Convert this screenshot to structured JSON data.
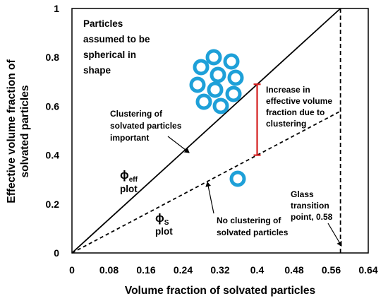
{
  "chart_data": {
    "type": "line",
    "xlabel": "Volume fraction of solvated particles",
    "ylabel": "Effective volume fraction of solvated particles",
    "xlim": [
      0,
      0.64
    ],
    "ylim": [
      0,
      1
    ],
    "x_ticks": [
      "0",
      "0.08",
      "0.16",
      "0.24",
      "0.32",
      "0.4",
      "0.48",
      "0.56",
      "0.64"
    ],
    "y_ticks": [
      "0",
      "0.2",
      "0.4",
      "0.6",
      "0.8",
      "1"
    ],
    "grid": false,
    "series": [
      {
        "key": "phi_eff",
        "style": "solid",
        "color": "#000000",
        "x": [
          0,
          0.58
        ],
        "y": [
          0,
          1
        ]
      },
      {
        "key": "phi_s",
        "style": "dashed",
        "color": "#000000",
        "x": [
          0,
          0.58
        ],
        "y": [
          0,
          0.58
        ]
      }
    ],
    "glass_transition": {
      "x": 0.58,
      "style": "dashed"
    },
    "clustering_gap": {
      "x": 0.4,
      "y_low": 0.4,
      "y_high": 0.69,
      "color": "#d42020"
    },
    "particle_color": "#1ea0d8",
    "annotations": {
      "particles_note": [
        "Particles",
        "assumed to be",
        "spherical in",
        "shape"
      ],
      "clustering_important": [
        "Clustering of",
        "solvated particles",
        "important"
      ],
      "increase": [
        "Increase in",
        "effective volume",
        "fraction due to",
        "clustering"
      ],
      "no_clustering": [
        "No clustering of",
        "solvated particles"
      ],
      "glass_point": [
        "Glass",
        "transition",
        "point, 0.58"
      ],
      "phi_eff_symbol": "ϕ",
      "phi_eff_sub": "eff",
      "phi_eff_plot": "plot",
      "phi_s_symbol": "ϕ",
      "phi_s_sub": "S",
      "phi_s_plot": "plot"
    }
  }
}
